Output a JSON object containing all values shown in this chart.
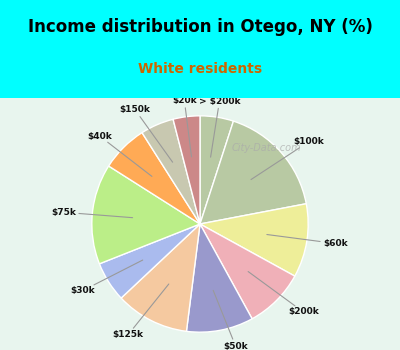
{
  "title": "Income distribution in Otego, NY (%)",
  "subtitle": "White residents",
  "watermark": "City-Data.com",
  "labels": [
    "> $200k",
    "$100k",
    "$60k",
    "$200k",
    "$50k",
    "$125k",
    "$30k",
    "$75k",
    "$40k",
    "$150k",
    "$20k"
  ],
  "values": [
    5,
    17,
    11,
    9,
    10,
    11,
    6,
    15,
    7,
    5,
    4
  ],
  "colors": [
    "#b8c9a3",
    "#b8c9a3",
    "#eeee99",
    "#f0b0b8",
    "#9999cc",
    "#f5c9a0",
    "#aabbee",
    "#bbee88",
    "#ffaa55",
    "#c8c8b0",
    "#cc8888"
  ],
  "background_top": "#00ffff",
  "background_chart": "#e8f5ee",
  "title_color": "#000000",
  "subtitle_color": "#cc6600",
  "label_line_colors": [
    "#aaaaaa",
    "#aaaaaa",
    "#cccc55",
    "#ffaaaa",
    "#8888bb",
    "#ddbb99",
    "#8899cc",
    "#bbdd66",
    "#ddaa44",
    "#ccccaa",
    "#cc7777"
  ],
  "startangle": 90,
  "wedge_edge_color": "#ffffff"
}
